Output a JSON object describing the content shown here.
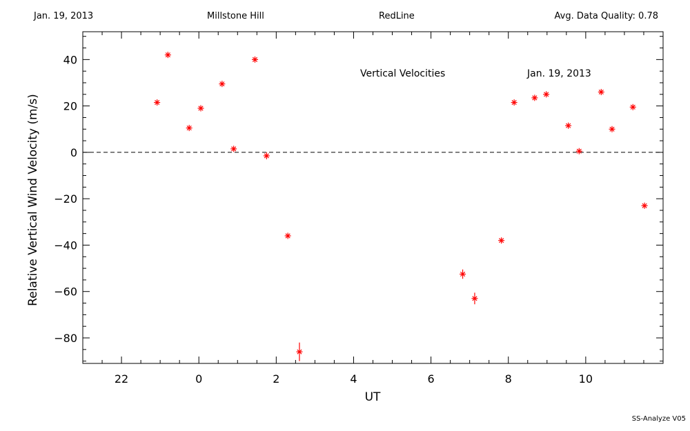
{
  "header": {
    "date": "Jan. 19, 2013",
    "site": "Millstone Hill",
    "instrument": "RedLine",
    "quality": "Avg. Data Quality: 0.78"
  },
  "footer": "SS-Analyze V05",
  "chart_data": {
    "type": "scatter",
    "title": "Vertical Velocities",
    "subtitle": "Jan. 19, 2013",
    "xlabel": "UT",
    "ylabel": "Relative Vertical Wind Velocity (m/s)",
    "xlim": [
      -3.0,
      12.0
    ],
    "ylim": [
      -91,
      52
    ],
    "x_major_ticks": [
      -2,
      0,
      2,
      4,
      6,
      8,
      10
    ],
    "x_tick_labels": [
      "22",
      "0",
      "2",
      "4",
      "6",
      "8",
      "10"
    ],
    "y_major_ticks": [
      -80,
      -60,
      -40,
      -20,
      0,
      20,
      40
    ],
    "y_tick_labels": [
      "−80",
      "−60",
      "−40",
      "−20",
      "0",
      "20",
      "40"
    ],
    "zero_line": "dashed",
    "marker_color": "#ff0000",
    "points": [
      {
        "x": -1.08,
        "y": 21.5,
        "err": 1.0
      },
      {
        "x": -0.8,
        "y": 42.0,
        "err": 1.0
      },
      {
        "x": -0.25,
        "y": 10.5,
        "err": 1.0
      },
      {
        "x": 0.05,
        "y": 19.0,
        "err": 1.0
      },
      {
        "x": 0.6,
        "y": 29.5,
        "err": 1.0
      },
      {
        "x": 0.9,
        "y": 1.5,
        "err": 1.0
      },
      {
        "x": 1.45,
        "y": 40.0,
        "err": 1.0
      },
      {
        "x": 1.75,
        "y": -1.5,
        "err": 1.5
      },
      {
        "x": 2.3,
        "y": -36.0,
        "err": 1.0
      },
      {
        "x": 2.6,
        "y": -86.0,
        "err": 4.0
      },
      {
        "x": 6.82,
        "y": -52.5,
        "err": 2.0
      },
      {
        "x": 7.13,
        "y": -63.0,
        "err": 2.5
      },
      {
        "x": 7.82,
        "y": -38.0,
        "err": 1.0
      },
      {
        "x": 8.15,
        "y": 21.5,
        "err": 1.0
      },
      {
        "x": 8.68,
        "y": 23.5,
        "err": 1.0
      },
      {
        "x": 8.98,
        "y": 25.0,
        "err": 1.0
      },
      {
        "x": 9.55,
        "y": 11.5,
        "err": 1.0
      },
      {
        "x": 9.83,
        "y": 0.5,
        "err": 1.0
      },
      {
        "x": 10.4,
        "y": 26.0,
        "err": 1.0
      },
      {
        "x": 10.68,
        "y": 10.0,
        "err": 1.0
      },
      {
        "x": 11.22,
        "y": 19.5,
        "err": 1.0
      },
      {
        "x": 11.52,
        "y": -23.0,
        "err": 1.0
      }
    ]
  }
}
